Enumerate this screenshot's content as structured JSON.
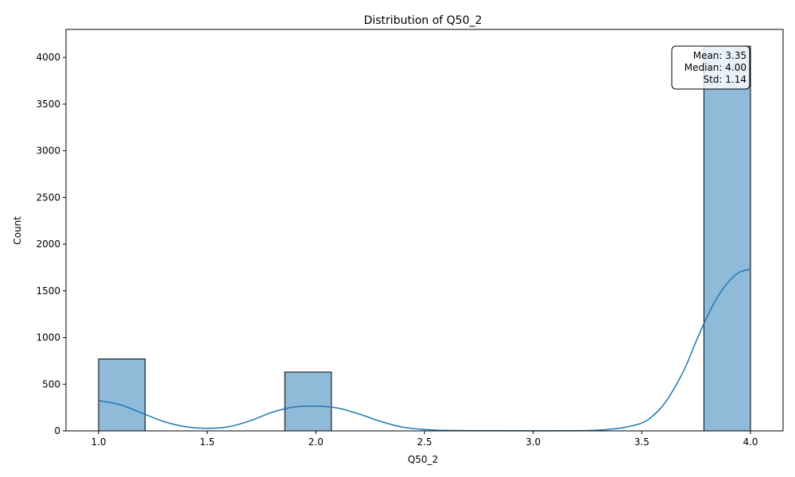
{
  "chart_data": {
    "type": "bar",
    "title": "Distribution of Q50_2",
    "xlabel": "Q50_2",
    "ylabel": "Count",
    "xlim": [
      0.85,
      4.15
    ],
    "ylim": [
      0,
      4300
    ],
    "xticks": [
      1.0,
      1.5,
      2.0,
      2.5,
      3.0,
      3.5,
      4.0
    ],
    "xtick_labels": [
      "1.0",
      "1.5",
      "2.0",
      "2.5",
      "3.0",
      "3.5",
      "4.0"
    ],
    "yticks": [
      0,
      500,
      1000,
      1500,
      2000,
      2500,
      3000,
      3500,
      4000
    ],
    "ytick_labels": [
      "0",
      "500",
      "1000",
      "1500",
      "2000",
      "2500",
      "3000",
      "3500",
      "4000"
    ],
    "bins": [
      {
        "x0": 1.0,
        "x1": 1.2143,
        "count": 770
      },
      {
        "x0": 1.8571,
        "x1": 2.0714,
        "count": 630
      },
      {
        "x0": 3.7857,
        "x1": 4.0,
        "count": 4120
      }
    ],
    "kde": {
      "x": [
        1.0,
        1.1,
        1.2,
        1.3,
        1.4,
        1.5,
        1.6,
        1.7,
        1.8,
        1.9,
        2.0,
        2.1,
        2.2,
        2.3,
        2.4,
        2.5,
        2.6,
        2.8,
        3.0,
        3.2,
        3.3,
        3.4,
        3.5,
        3.55,
        3.6,
        3.65,
        3.7,
        3.75,
        3.8,
        3.85,
        3.9,
        3.95,
        4.0
      ],
      "y": [
        325,
        280,
        190,
        100,
        45,
        28,
        45,
        110,
        200,
        255,
        265,
        245,
        180,
        100,
        40,
        15,
        5,
        2,
        1,
        2,
        8,
        30,
        85,
        160,
        280,
        460,
        680,
        960,
        1220,
        1440,
        1600,
        1700,
        1730
      ]
    },
    "stats": {
      "mean": "Mean: 3.35",
      "median": "Median: 4.00",
      "std": "Std: 1.14"
    },
    "bar_color": "#8fbbd9",
    "bar_edge_color": "#000000",
    "kde_color": "#1f77b4",
    "grid": false,
    "legend": "none"
  }
}
